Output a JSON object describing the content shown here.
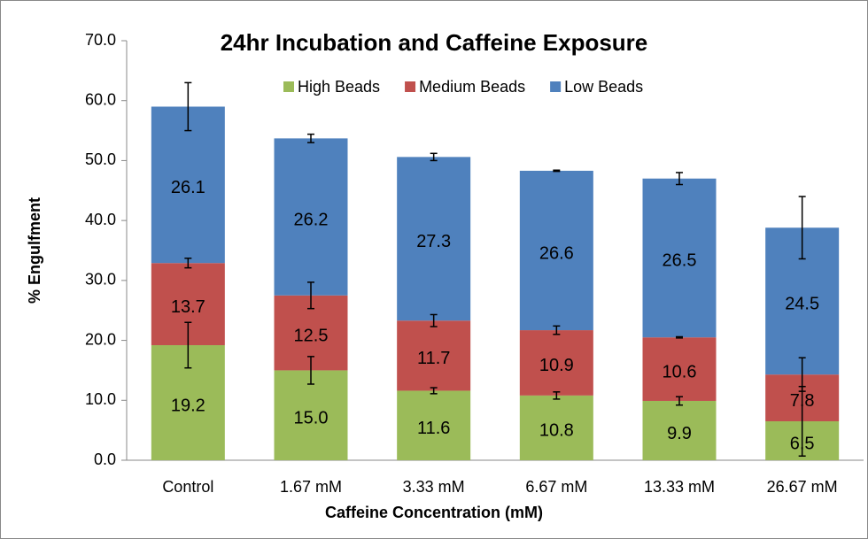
{
  "chart_data": {
    "type": "bar",
    "stacked": true,
    "title": "24hr Incubation and Caffeine Exposure",
    "x_label": "Caffeine Concentration (mM)",
    "y_label": "% Engulfment",
    "categories": [
      "Control",
      "1.67 mM",
      "3.33 mM",
      "6.67 mM",
      "13.33 mM",
      "26.67 mM"
    ],
    "series": [
      {
        "name": "High Beads",
        "color": "#9bbb59",
        "values": [
          19.2,
          15,
          11.6,
          10.8,
          9.9,
          6.5
        ],
        "value_labels": [
          "19.2",
          "15.0",
          "11.6",
          "10.8",
          "9.9",
          "6.5"
        ],
        "errors": [
          3.8,
          2.3,
          0.5,
          0.6,
          0.7,
          5.8
        ]
      },
      {
        "name": "Medium Beads",
        "color": "#c0504d",
        "values": [
          13.7,
          12.5,
          11.7,
          10.9,
          10.6,
          7.8
        ],
        "errors": [
          0.8,
          2.2,
          1,
          0.7,
          0.1,
          2.8
        ]
      },
      {
        "name": "Low Beads",
        "color": "#4f81bd",
        "values": [
          26.1,
          26.2,
          27.3,
          26.6,
          26.5,
          24.5
        ],
        "errors": [
          4,
          0.7,
          0.6,
          0.1,
          1,
          5.2
        ]
      }
    ],
    "ylim": [
      0,
      70
    ],
    "yticks": [
      {
        "value": 0,
        "label": "0.0"
      },
      {
        "value": 10,
        "label": "10.0"
      },
      {
        "value": 20,
        "label": "20.0"
      },
      {
        "value": 30,
        "label": "30.0"
      },
      {
        "value": 40,
        "label": "40.0"
      },
      {
        "value": 50,
        "label": "50.0"
      },
      {
        "value": 60,
        "label": "60.0"
      },
      {
        "value": 70,
        "label": "70.0"
      }
    ],
    "legend": "top"
  }
}
